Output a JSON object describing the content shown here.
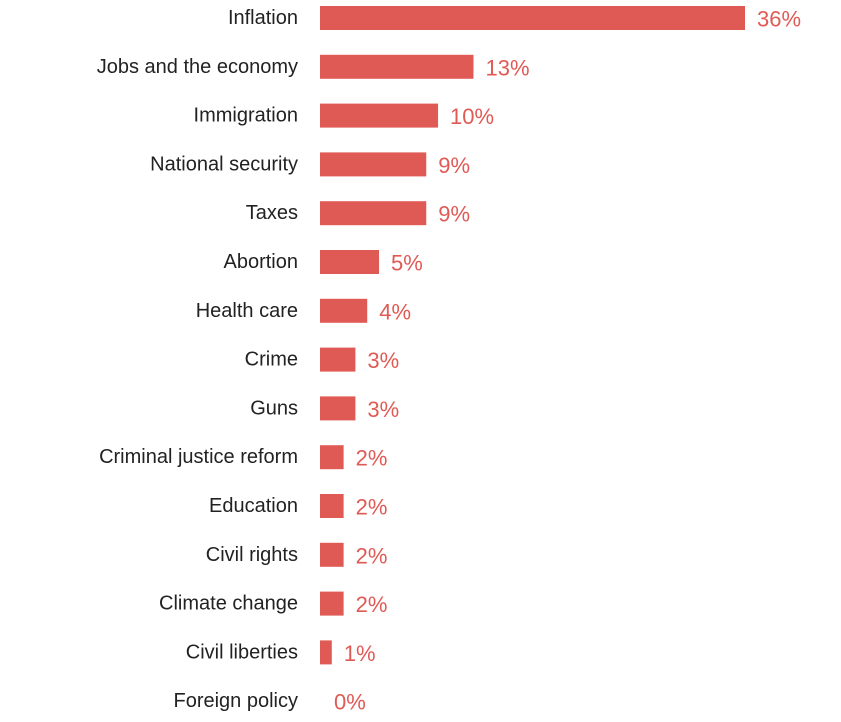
{
  "chart_data": {
    "type": "bar",
    "orientation": "horizontal",
    "title": "",
    "xlabel": "",
    "ylabel": "",
    "value_suffix": "%",
    "xlim": [
      0,
      36
    ],
    "grid": false,
    "bar_color": "#e05a55",
    "label_color": "#e05a55",
    "categories": [
      "Inflation",
      "Jobs and the economy",
      "Immigration",
      "National security",
      "Taxes",
      "Abortion",
      "Health care",
      "Crime",
      "Guns",
      "Criminal justice reform",
      "Education",
      "Civil rights",
      "Climate change",
      "Civil liberties",
      "Foreign policy"
    ],
    "values": [
      36,
      13,
      10,
      9,
      9,
      5,
      4,
      3,
      3,
      2,
      2,
      2,
      2,
      1,
      0
    ],
    "value_labels": [
      "36%",
      "13%",
      "10%",
      "9%",
      "9%",
      "5%",
      "4%",
      "3%",
      "3%",
      "2%",
      "2%",
      "2%",
      "2%",
      "1%",
      "0%"
    ]
  }
}
